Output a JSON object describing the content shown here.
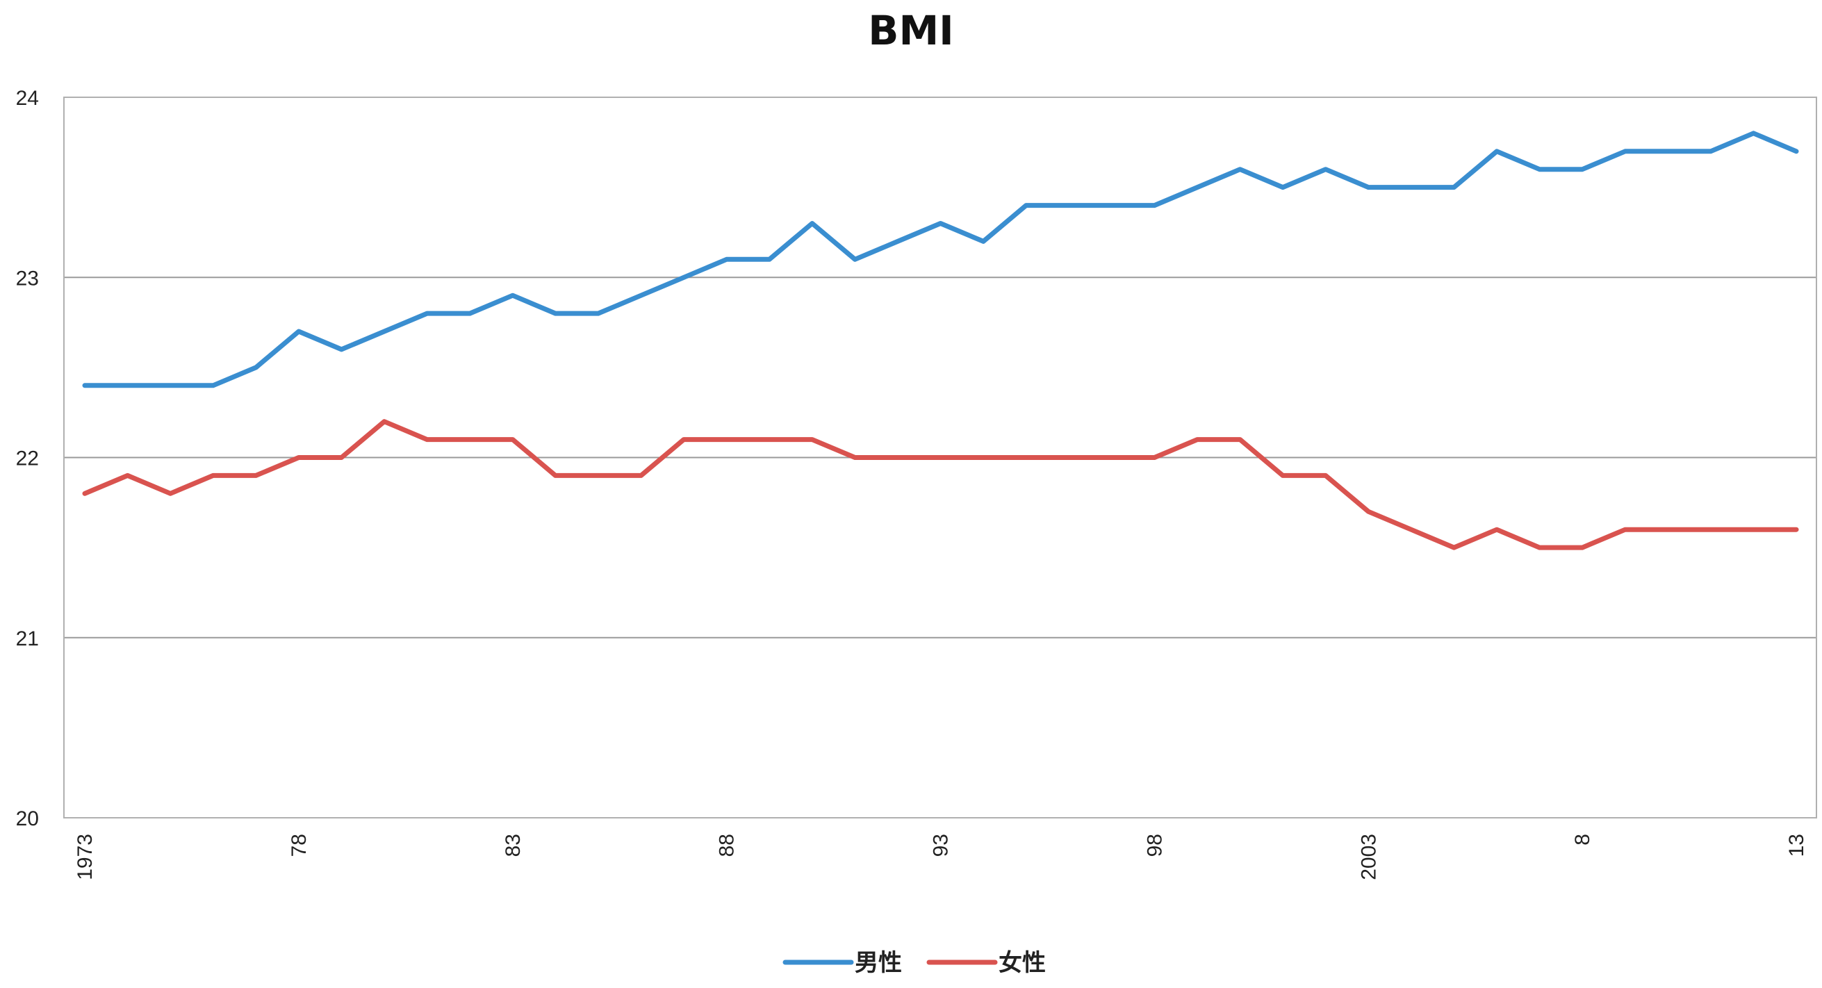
{
  "chart_data": {
    "type": "line",
    "title": "BMI",
    "xlabel": "",
    "ylabel": "",
    "ylim": [
      20,
      24
    ],
    "yticks": [
      "20",
      "21",
      "22",
      "23",
      "24"
    ],
    "x": [
      1973,
      1974,
      1975,
      1976,
      1977,
      1978,
      1979,
      1980,
      1981,
      1982,
      1983,
      1984,
      1985,
      1986,
      1987,
      1988,
      1989,
      1990,
      1991,
      1992,
      1993,
      1994,
      1995,
      1996,
      1997,
      1998,
      1999,
      2000,
      2001,
      2002,
      2003,
      2004,
      2005,
      2006,
      2007,
      2008,
      2009,
      2010,
      2011,
      2012,
      2013
    ],
    "xtick_labels": [
      {
        "x": 1973,
        "label": "1973"
      },
      {
        "x": 1978,
        "label": "78"
      },
      {
        "x": 1983,
        "label": "83"
      },
      {
        "x": 1988,
        "label": "88"
      },
      {
        "x": 1993,
        "label": "93"
      },
      {
        "x": 1998,
        "label": "98"
      },
      {
        "x": 2003,
        "label": "2003"
      },
      {
        "x": 2008,
        "label": "8"
      },
      {
        "x": 2013,
        "label": "13"
      }
    ],
    "grid": true,
    "legend_position": "bottom",
    "series": [
      {
        "name": "男性",
        "color": "#3a8ed0",
        "values": [
          22.4,
          22.4,
          22.4,
          22.4,
          22.5,
          22.7,
          22.6,
          22.7,
          22.8,
          22.8,
          22.9,
          22.8,
          22.8,
          22.9,
          23.0,
          23.1,
          23.1,
          23.3,
          23.1,
          23.2,
          23.3,
          23.2,
          23.4,
          23.4,
          23.4,
          23.4,
          23.5,
          23.6,
          23.5,
          23.6,
          23.5,
          23.5,
          23.5,
          23.7,
          23.6,
          23.6,
          23.7,
          23.7,
          23.7,
          23.8,
          23.7
        ]
      },
      {
        "name": "女性",
        "color": "#d9534f",
        "values": [
          21.8,
          21.9,
          21.8,
          21.9,
          21.9,
          22.0,
          22.0,
          22.2,
          22.1,
          22.1,
          22.1,
          21.9,
          21.9,
          21.9,
          22.1,
          22.1,
          22.1,
          22.1,
          22.0,
          22.0,
          22.0,
          22.0,
          22.0,
          22.0,
          22.0,
          22.0,
          22.1,
          22.1,
          21.9,
          21.9,
          21.7,
          21.6,
          21.5,
          21.6,
          21.5,
          21.5,
          21.6,
          21.6,
          21.6,
          21.6,
          21.6
        ]
      }
    ]
  }
}
